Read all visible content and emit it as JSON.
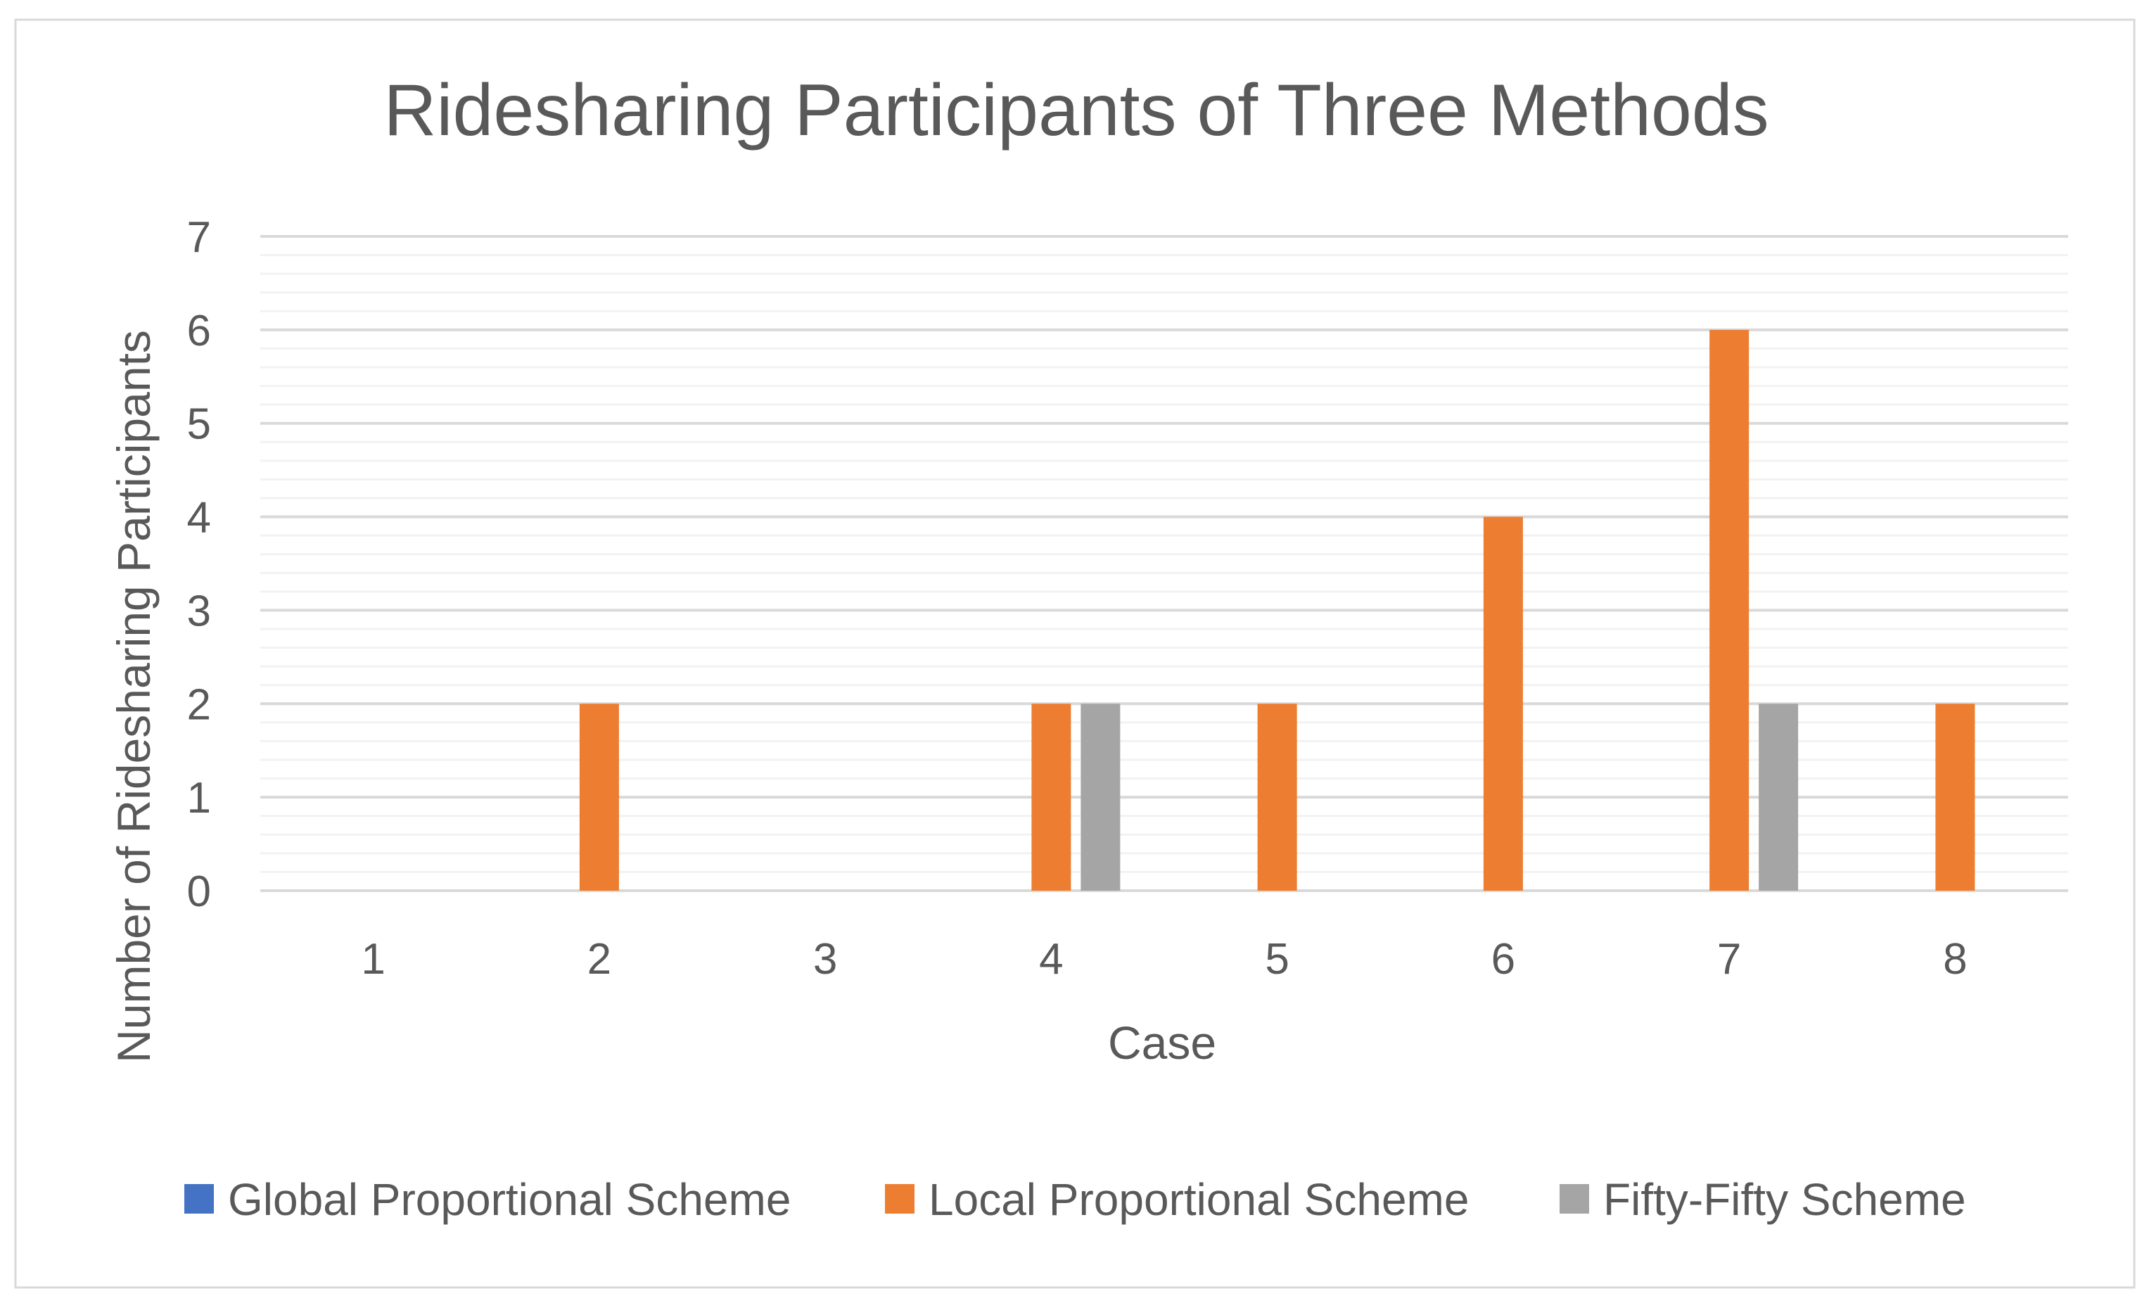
{
  "chart_data": {
    "type": "bar",
    "title": "Ridesharing Participants of Three Methods",
    "xlabel": "Case",
    "ylabel": "Number of Ridesharing Participants",
    "categories": [
      "1",
      "2",
      "3",
      "4",
      "5",
      "6",
      "7",
      "8"
    ],
    "series": [
      {
        "name": "Global Proportional Scheme",
        "color": "#4472C4",
        "values": [
          0,
          0,
          0,
          0,
          0,
          0,
          0,
          0
        ]
      },
      {
        "name": "Local Proportional Scheme",
        "color": "#ED7D31",
        "values": [
          0,
          2,
          0,
          2,
          2,
          4,
          6,
          2
        ]
      },
      {
        "name": "Fifty-Fifty Scheme",
        "color": "#A5A5A5",
        "values": [
          0,
          0,
          0,
          2,
          0,
          0,
          2,
          0
        ]
      }
    ],
    "ylim": [
      0,
      7
    ],
    "yticks": [
      "0",
      "1",
      "2",
      "3",
      "4",
      "5",
      "6",
      "7"
    ],
    "grid": true,
    "minor_grid": true,
    "legend_position": "bottom"
  }
}
